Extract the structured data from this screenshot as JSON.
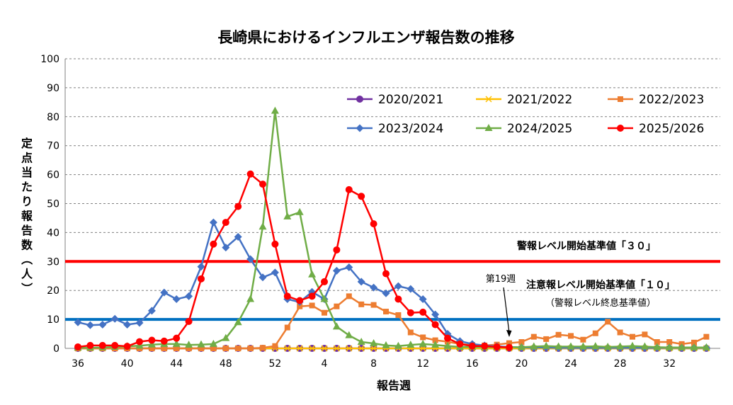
{
  "chart_data": {
    "type": "line",
    "title": "長崎県におけるインフルエンザ報告数の推移",
    "xlabel": "報告週",
    "ylabel": "定点当たり報告数（人）",
    "ylim": [
      0,
      100
    ],
    "yticks": [
      0,
      10,
      20,
      30,
      40,
      50,
      60,
      70,
      80,
      90,
      100
    ],
    "weeks": [
      36,
      37,
      38,
      39,
      40,
      41,
      42,
      43,
      44,
      45,
      46,
      47,
      48,
      49,
      50,
      51,
      52,
      1,
      2,
      3,
      4,
      5,
      6,
      7,
      8,
      9,
      10,
      11,
      12,
      13,
      14,
      15,
      16,
      17,
      18,
      19,
      20,
      21,
      22,
      23,
      24,
      25,
      26,
      27,
      28,
      29,
      30,
      31,
      32,
      33,
      34,
      35
    ],
    "xtick_labels": [
      "36",
      "40",
      "44",
      "48",
      "52",
      "4",
      "8",
      "12",
      "16",
      "20",
      "24",
      "28",
      "32"
    ],
    "grid": "horizontal",
    "legend_position": "top-right",
    "series": [
      {
        "name": "2020/2021",
        "color": "#7030a0",
        "marker": "circle",
        "values": [
          0,
          0,
          0,
          0,
          0,
          0,
          0,
          0,
          0,
          0,
          0,
          0,
          0,
          0,
          0,
          0,
          0,
          0,
          0,
          0,
          0,
          0,
          0,
          0,
          0,
          0,
          0,
          0,
          0,
          0,
          0,
          0,
          0,
          0,
          0,
          0,
          0,
          0,
          0,
          0,
          0,
          0,
          0,
          0,
          0,
          0,
          0,
          0,
          0,
          0,
          0,
          0
        ]
      },
      {
        "name": "2021/2022",
        "color": "#ffc000",
        "marker": "x",
        "values": [
          0,
          0,
          0,
          0,
          0,
          0,
          0,
          0,
          0,
          0,
          0,
          0,
          0,
          0,
          0,
          0,
          0,
          0,
          0,
          0,
          0,
          0,
          0,
          0,
          0,
          0,
          0,
          0,
          0,
          0,
          0,
          0,
          0,
          0,
          0,
          0,
          0,
          0,
          0,
          0,
          0,
          0,
          0,
          0,
          0,
          0,
          0,
          0,
          0,
          0,
          0,
          0
        ]
      },
      {
        "name": "2022/2023",
        "color": "#ed7d31",
        "marker": "square",
        "values": [
          0,
          0,
          0,
          0,
          0,
          0,
          0,
          0,
          0,
          0,
          0,
          0,
          0,
          0,
          0,
          0.2,
          0.8,
          7.2,
          14.5,
          14.8,
          12.3,
          14.5,
          18.0,
          15.2,
          15.0,
          12.7,
          11.5,
          5.5,
          3.8,
          2.8,
          2.3,
          1.5,
          1.2,
          1.0,
          1.3,
          1.8,
          2.2,
          4.0,
          3.2,
          4.7,
          4.3,
          3.0,
          5.2,
          9.2,
          5.5,
          4.0,
          4.8,
          2.2,
          2.2,
          1.5,
          2.0,
          4.0
        ]
      },
      {
        "name": "2023/2024",
        "color": "#4472c4",
        "marker": "diamond",
        "values": [
          9.0,
          8.0,
          8.2,
          10.2,
          8.2,
          8.8,
          13.0,
          19.3,
          17.0,
          18.0,
          28.2,
          43.5,
          34.8,
          38.5,
          30.8,
          24.5,
          26.2,
          17.0,
          16.0,
          19.5,
          17.0,
          26.8,
          28.0,
          23.0,
          21.0,
          19.0,
          21.5,
          20.5,
          17.0,
          11.7,
          5.0,
          2.5,
          1.5,
          1.0,
          0.7,
          0.5,
          0.3,
          0.3,
          0.3,
          0.2,
          0.2,
          0.2,
          0.2,
          0.2,
          0.2,
          0.2,
          0.2,
          0.2,
          0.2,
          0.2,
          0.2,
          0.2
        ]
      },
      {
        "name": "2024/2025",
        "color": "#70ad47",
        "marker": "triangle",
        "values": [
          0.2,
          0.2,
          0.3,
          0.5,
          0.7,
          0.9,
          1.3,
          1.5,
          1.5,
          1.2,
          1.3,
          1.5,
          3.5,
          9.0,
          17.0,
          42.0,
          82.0,
          45.5,
          47.0,
          25.5,
          17.0,
          7.5,
          4.5,
          2.2,
          1.7,
          1.0,
          0.8,
          1.2,
          1.5,
          1.2,
          0.8,
          0.5,
          0.5,
          0.4,
          0.4,
          0.4,
          0.4,
          0.6,
          0.8,
          0.6,
          0.6,
          0.6,
          0.7,
          0.5,
          0.6,
          0.8,
          0.6,
          0.4,
          0.3,
          0.3,
          0.3,
          0.3
        ]
      },
      {
        "name": "2025/2026",
        "color": "#ff0000",
        "marker": "circle",
        "values": [
          0.5,
          1.0,
          1.0,
          1.0,
          0.7,
          2.3,
          2.8,
          2.5,
          3.5,
          9.3,
          24.0,
          36.0,
          43.5,
          49.0,
          60.2,
          56.7,
          36.0,
          18.0,
          16.5,
          18.0,
          23.0,
          34.0,
          54.8,
          52.5,
          43.0,
          25.8,
          17.0,
          12.3,
          12.5,
          8.2,
          3.5,
          1.5,
          0.8,
          0.8,
          0.5,
          0.3,
          null,
          null,
          null,
          null,
          null,
          null,
          null,
          null,
          null,
          null,
          null,
          null,
          null,
          null,
          null,
          null
        ]
      }
    ],
    "reference_lines": [
      {
        "value": 30,
        "color": "#ff0000",
        "label": "警報レベル開始基準値「３０」"
      },
      {
        "value": 10,
        "color": "#0070c0",
        "label": "注意報レベル開始基準値「１０」",
        "sublabel": "（警報レベル終息基準値）"
      }
    ],
    "annotations": {
      "current_week_label": "第19週",
      "current_week": 19,
      "current_week_index": 35
    }
  }
}
